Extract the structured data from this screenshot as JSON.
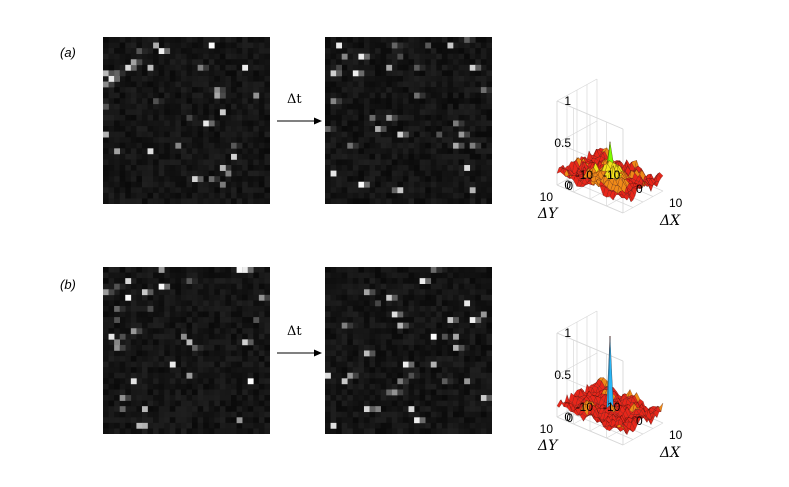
{
  "rows": [
    {
      "label": "(a)",
      "arrow_label": "Δt",
      "peak": 0.55,
      "peak_color": "#7CFC00"
    },
    {
      "label": "(b)",
      "arrow_label": "Δt",
      "peak": 1.0,
      "peak_color": "#29B6F6"
    }
  ],
  "surface_axes": {
    "z_ticks": [
      "1",
      "0.5",
      "0"
    ],
    "y_ticks": [
      "10",
      "0",
      "-10"
    ],
    "x_ticks": [
      "-10",
      "0",
      "10"
    ],
    "x_label": "ΔX",
    "y_label": "ΔY"
  },
  "colors": {
    "frame_bg": "#0b0b0b",
    "surface_base": "#e8261a",
    "surface_high": "#f2e31a"
  }
}
